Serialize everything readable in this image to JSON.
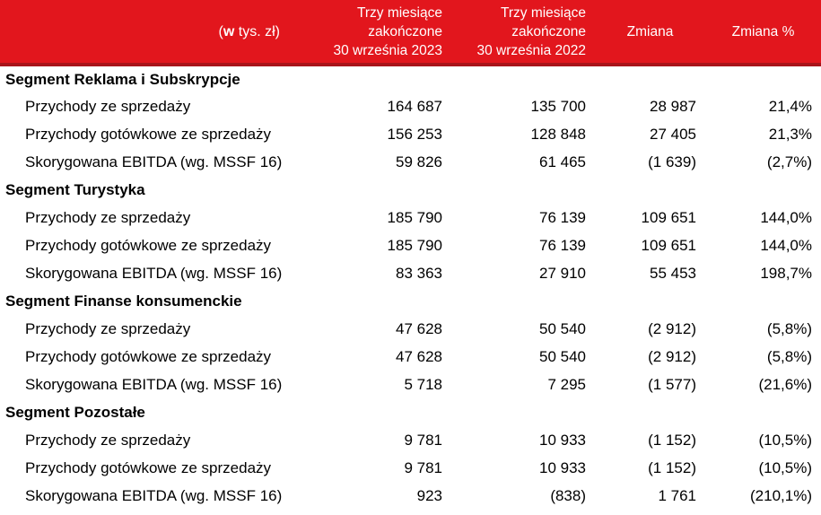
{
  "chart_data": {
    "type": "table",
    "unit_label": "(w tys. zł)",
    "unit_label_parts": {
      "pre": "(",
      "bold": "w",
      "post": " tys. zł)"
    },
    "column_headers": [
      [
        "Trzy miesiące",
        "zakończone",
        "30 września 2023"
      ],
      [
        "Trzy miesiące",
        "zakończone",
        "30 września 2022"
      ],
      [
        "Zmiana"
      ],
      [
        "Zmiana %"
      ]
    ],
    "sections": [
      {
        "title": "Segment Reklama i Subskrypcje",
        "rows": [
          {
            "label": "Przychody ze sprzedaży",
            "values": [
              "164 687",
              "135 700",
              "28 987",
              "21,4%"
            ]
          },
          {
            "label": "Przychody gotówkowe ze sprzedaży",
            "values": [
              "156 253",
              "128 848",
              "27 405",
              "21,3%"
            ]
          },
          {
            "label": "Skorygowana EBITDA (wg. MSSF 16)",
            "values": [
              "59 826",
              "61 465",
              "(1 639)",
              "(2,7%)"
            ]
          }
        ]
      },
      {
        "title": "Segment Turystyka",
        "rows": [
          {
            "label": "Przychody ze sprzedaży",
            "values": [
              "185 790",
              "76 139",
              "109 651",
              "144,0%"
            ]
          },
          {
            "label": "Przychody gotówkowe ze sprzedaży",
            "values": [
              "185 790",
              "76 139",
              "109 651",
              "144,0%"
            ]
          },
          {
            "label": "Skorygowana EBITDA (wg. MSSF 16)",
            "values": [
              "83 363",
              "27 910",
              "55 453",
              "198,7%"
            ]
          }
        ]
      },
      {
        "title": "Segment Finanse konsumenckie",
        "rows": [
          {
            "label": "Przychody ze sprzedaży",
            "values": [
              "47 628",
              "50 540",
              "(2 912)",
              "(5,8%)"
            ]
          },
          {
            "label": "Przychody gotówkowe ze sprzedaży",
            "values": [
              "47 628",
              "50 540",
              "(2 912)",
              "(5,8%)"
            ]
          },
          {
            "label": "Skorygowana EBITDA (wg. MSSF 16)",
            "values": [
              "5 718",
              "7 295",
              "(1 577)",
              "(21,6%)"
            ]
          }
        ]
      },
      {
        "title": "Segment Pozostałe",
        "rows": [
          {
            "label": "Przychody ze sprzedaży",
            "values": [
              "9 781",
              "10 933",
              "(1 152)",
              "(10,5%)"
            ]
          },
          {
            "label": "Przychody gotówkowe ze sprzedaży",
            "values": [
              "9 781",
              "10 933",
              "(1 152)",
              "(10,5%)"
            ]
          },
          {
            "label": "Skorygowana EBITDA (wg. MSSF 16)",
            "values": [
              "923",
              "(838)",
              "1 761",
              "(210,1%)"
            ]
          }
        ]
      }
    ],
    "colors": {
      "header_background": "#e2161d",
      "header_separator": "#a9141a",
      "header_text": "#ffffff",
      "body_text": "#000000",
      "body_background": "#ffffff"
    }
  }
}
